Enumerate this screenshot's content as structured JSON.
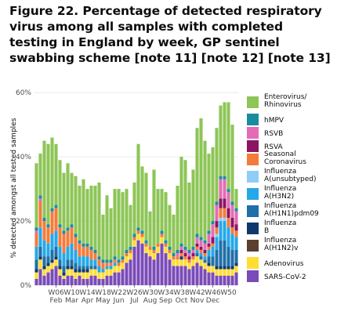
{
  "figure_title": "Figure 22. Percentage of detected respiratory virus among all samples with completed testing in England by week, GP sentinel swabbing scheme [note 11] [note 12] [note 13]",
  "colors": {
    "sars": "#7b4bb8",
    "adeno": "#ffdd33",
    "h1n2": "#5b4030",
    "fluB": "#0e3a6b",
    "h1pdm": "#1f6fa8",
    "h3n2": "#25a8e8",
    "unsub": "#8fcdf6",
    "seasonal": "#f47b3b",
    "rsva": "#8b1563",
    "rsvb": "#e36cb5",
    "hmpv": "#1a8ca0",
    "rhino": "#8dc556"
  },
  "chart_data": {
    "type": "bar",
    "stacked": true,
    "ylabel": "% detected amongst all tested samples",
    "ylim": [
      0,
      62
    ],
    "yticks": [
      "0%",
      "20%",
      "40%",
      "60%"
    ],
    "xticks": [
      {
        "week": 6,
        "week_label": "W06",
        "month": "Feb"
      },
      {
        "week": 10,
        "week_label": "W10",
        "month": "Mar"
      },
      {
        "week": 14,
        "week_label": "W14",
        "month": "Apr"
      },
      {
        "week": 18,
        "week_label": "W18",
        "month": "May"
      },
      {
        "week": 22,
        "week_label": "W22",
        "month": "Jun"
      },
      {
        "week": 26,
        "week_label": "W26",
        "month": "Jul"
      },
      {
        "week": 30,
        "week_label": "W30",
        "month": "Aug"
      },
      {
        "week": 34,
        "week_label": "W34",
        "month": "Sep"
      },
      {
        "week": 38,
        "week_label": "W38",
        "month": "Oct"
      },
      {
        "week": 42,
        "week_label": "W42",
        "month": "Nov"
      },
      {
        "week": 46,
        "week_label": "W46",
        "month": "Dec"
      },
      {
        "week": 50,
        "week_label": "W50",
        "month": ""
      }
    ],
    "weeks": [
      1,
      2,
      3,
      4,
      5,
      6,
      7,
      8,
      9,
      10,
      11,
      12,
      13,
      14,
      15,
      16,
      17,
      18,
      19,
      20,
      21,
      22,
      23,
      24,
      25,
      26,
      27,
      28,
      29,
      30,
      31,
      32,
      33,
      34,
      35,
      36,
      37,
      38,
      39,
      40,
      41,
      42,
      43,
      44,
      45,
      46,
      47,
      48,
      49,
      50,
      51,
      52
    ],
    "legend_position": "right",
    "series": [
      {
        "name": "SARS-CoV-2",
        "key": "sars",
        "values": [
          2,
          5,
          3,
          4,
          5,
          6,
          3,
          2,
          3,
          3,
          2,
          3,
          2,
          2,
          3,
          3,
          2,
          2,
          3,
          3,
          4,
          4,
          5,
          7,
          8,
          12,
          14,
          13,
          10,
          9,
          8,
          10,
          13,
          10,
          8,
          6,
          6,
          6,
          6,
          5,
          6,
          7,
          6,
          5,
          4,
          4,
          3,
          3,
          3,
          3,
          3,
          4
        ]
      },
      {
        "name": "Adenovirus",
        "key": "adeno",
        "values": [
          2,
          3,
          2,
          2,
          2,
          2,
          2,
          1,
          2,
          2,
          2,
          1,
          2,
          2,
          2,
          2,
          2,
          2,
          2,
          2,
          2,
          2,
          2,
          2,
          2,
          2,
          2,
          2,
          2,
          2,
          2,
          2,
          2,
          2,
          2,
          2,
          2,
          2,
          2,
          2,
          2,
          2,
          2,
          2,
          2,
          2,
          2,
          2,
          2,
          2,
          2,
          2
        ]
      },
      {
        "name": "Influenza A(H1N2)v",
        "key": "h1n2",
        "values": [
          0,
          0,
          0,
          0,
          0,
          0,
          0,
          0,
          0,
          0,
          0,
          0,
          0,
          0,
          0,
          0,
          0,
          0,
          0,
          0,
          0,
          0,
          0,
          0,
          0,
          0,
          0,
          0,
          0,
          0,
          0,
          0,
          0,
          0,
          0,
          0,
          0,
          0,
          0,
          0,
          0,
          0,
          0,
          0,
          0,
          0,
          0,
          0,
          0,
          0,
          0,
          0
        ]
      },
      {
        "name": "Influenza B",
        "key": "fluB",
        "values": [
          1,
          1,
          1,
          1,
          1,
          1,
          1,
          1,
          1,
          1,
          1,
          1,
          1,
          1,
          0,
          0,
          0,
          0,
          0,
          0,
          0,
          0,
          0,
          0,
          0,
          0,
          0,
          0,
          0,
          0,
          0,
          0,
          0,
          0,
          0,
          0,
          0,
          1,
          0,
          0,
          0,
          0,
          0,
          0,
          1,
          0,
          1,
          1,
          1,
          1,
          1,
          1
        ]
      },
      {
        "name": "Influenza A(H1N1)pdm09",
        "key": "h1pdm",
        "values": [
          3,
          3,
          3,
          2,
          3,
          3,
          2,
          2,
          2,
          2,
          2,
          1,
          1,
          1,
          1,
          1,
          0,
          0,
          0,
          0,
          0,
          0,
          0,
          0,
          0,
          0,
          0,
          0,
          0,
          0,
          0,
          0,
          0,
          0,
          0,
          0,
          0,
          0,
          0,
          0,
          0,
          1,
          1,
          1,
          2,
          3,
          5,
          8,
          8,
          6,
          5,
          4
        ]
      },
      {
        "name": "Influenza A(H3N2)",
        "key": "h3n2",
        "values": [
          4,
          6,
          5,
          4,
          5,
          5,
          4,
          4,
          4,
          5,
          4,
          3,
          3,
          3,
          2,
          2,
          2,
          1,
          1,
          1,
          1,
          0,
          0,
          0,
          0,
          0,
          0,
          0,
          0,
          0,
          0,
          0,
          0,
          0,
          0,
          0,
          0,
          0,
          0,
          0,
          0,
          1,
          1,
          1,
          2,
          3,
          4,
          6,
          6,
          6,
          5,
          4
        ]
      },
      {
        "name": "Influenza A(unsubtyped)",
        "key": "unsub",
        "values": [
          0,
          0,
          0,
          0,
          0,
          0,
          0,
          0,
          0,
          0,
          0,
          0,
          0,
          0,
          0,
          0,
          0,
          0,
          0,
          0,
          0,
          0,
          0,
          0,
          0,
          0,
          0,
          0,
          0,
          0,
          0,
          0,
          0,
          0,
          0,
          0,
          0,
          0,
          0,
          0,
          0,
          0,
          0,
          0,
          0,
          0,
          1,
          1,
          1,
          0,
          0,
          0
        ]
      },
      {
        "name": "Seasonal Coronavirus",
        "key": "seasonal",
        "values": [
          4,
          8,
          6,
          5,
          7,
          7,
          6,
          6,
          5,
          5,
          4,
          4,
          3,
          3,
          3,
          2,
          2,
          2,
          1,
          1,
          1,
          1,
          1,
          1,
          1,
          1,
          1,
          1,
          1,
          1,
          1,
          1,
          1,
          1,
          1,
          1,
          1,
          1,
          1,
          1,
          1,
          1,
          1,
          1,
          1,
          1,
          2,
          3,
          3,
          3,
          2,
          2
        ]
      },
      {
        "name": "RSVA",
        "key": "rsva",
        "values": [
          0,
          0,
          0,
          0,
          0,
          0,
          0,
          0,
          0,
          0,
          0,
          0,
          0,
          0,
          0,
          0,
          0,
          0,
          0,
          0,
          0,
          0,
          0,
          0,
          0,
          0,
          0,
          0,
          0,
          0,
          0,
          0,
          0,
          0,
          0,
          0,
          0,
          1,
          1,
          1,
          1,
          1,
          1,
          1,
          1,
          2,
          2,
          3,
          3,
          3,
          3,
          2
        ]
      },
      {
        "name": "RSVB",
        "key": "rsvb",
        "values": [
          1,
          1,
          0,
          0,
          0,
          0,
          0,
          0,
          0,
          0,
          0,
          0,
          0,
          0,
          0,
          0,
          0,
          0,
          0,
          0,
          0,
          0,
          0,
          0,
          0,
          0,
          0,
          0,
          0,
          0,
          0,
          0,
          0,
          0,
          0,
          0,
          1,
          1,
          1,
          1,
          1,
          2,
          2,
          2,
          3,
          4,
          5,
          6,
          6,
          5,
          4,
          4
        ]
      },
      {
        "name": "hMPV",
        "key": "hmpv",
        "values": [
          1,
          1,
          1,
          1,
          1,
          1,
          1,
          1,
          1,
          1,
          1,
          1,
          1,
          1,
          1,
          1,
          1,
          1,
          1,
          1,
          1,
          1,
          1,
          1,
          1,
          1,
          1,
          1,
          1,
          0,
          1,
          0,
          1,
          1,
          1,
          1,
          1,
          1,
          1,
          1,
          1,
          1,
          1,
          1,
          1,
          1,
          1,
          1,
          1,
          1,
          1,
          1
        ]
      },
      {
        "name": "Enterovirus/ Rhinovirus",
        "key": "rhino",
        "values": [
          20,
          13,
          24,
          25,
          22,
          19,
          20,
          18,
          20,
          16,
          18,
          17,
          20,
          17,
          19,
          20,
          23,
          14,
          20,
          16,
          21,
          22,
          20,
          19,
          13,
          16,
          26,
          20,
          21,
          11,
          24,
          17,
          13,
          15,
          13,
          12,
          20,
          27,
          27,
          21,
          24,
          33,
          37,
          31,
          24,
          23,
          23,
          22,
          23,
          27,
          24,
          6
        ]
      }
    ],
    "legend": [
      {
        "label": "Enterovirus/ Rhinovirus",
        "key": "rhino"
      },
      {
        "label": "hMPV",
        "key": "hmpv"
      },
      {
        "label": "RSVB",
        "key": "rsvb"
      },
      {
        "label": "RSVA",
        "key": "rsva"
      },
      {
        "label": "Seasonal Coronavirus",
        "key": "seasonal"
      },
      {
        "label": "Influenza A(unsubtyped)",
        "key": "unsub"
      },
      {
        "label": "Influenza A(H3N2)",
        "key": "h3n2"
      },
      {
        "label": "Influenza A(H1N1)pdm09",
        "key": "h1pdm"
      },
      {
        "label": "Influenza B",
        "key": "fluB"
      },
      {
        "label": "Influenza A(H1N2)v",
        "key": "h1n2"
      },
      {
        "label": "Adenovirus",
        "key": "adeno"
      },
      {
        "label": "SARS-CoV-2",
        "key": "sars"
      }
    ]
  }
}
